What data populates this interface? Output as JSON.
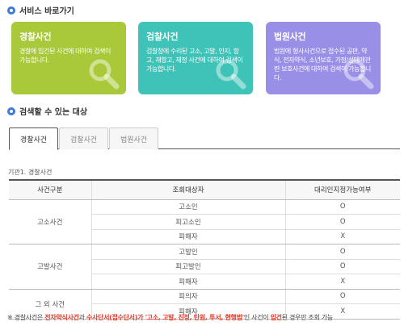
{
  "sections": {
    "shortcuts_title": "서비스 바로가기",
    "searchable_title": "검색할 수 있는 대상"
  },
  "cards": [
    {
      "title": "경찰사건",
      "desc": "경찰에 입건된 사건에 대하여 검색이 가능합니다.",
      "color": "#a9c93a"
    },
    {
      "title": "검찰사건",
      "desc": "검찰청에 수리된 고소, 고발, 인지, 항고, 재항고, 재정 사건에 대하여 검색이 가능합니다.",
      "color": "#3fc2b7"
    },
    {
      "title": "법원사건",
      "desc": "법원에 형사사건으로 접수된 공판, 약식, 전자약식, 소년보호, 가정/성매매관련 보호사건에 대하여 검색이 가능합니다.",
      "color": "#9a8fe6"
    }
  ],
  "tabs": [
    "경찰사건",
    "검찰사건",
    "법원사건"
  ],
  "active_tab": "경찰사건",
  "table": {
    "caption": "기관1. 경찰사건",
    "headers": [
      "사건구분",
      "조회대상자",
      "대리인지정가능여부"
    ],
    "groups": [
      {
        "name": "고소사건",
        "rows": [
          [
            "고소인",
            "O"
          ],
          [
            "피고소인",
            "O"
          ],
          [
            "피해자",
            "X"
          ]
        ]
      },
      {
        "name": "고발사건",
        "rows": [
          [
            "고발인",
            "O"
          ],
          [
            "피고발인",
            "O"
          ],
          [
            "피해자",
            "X"
          ]
        ]
      },
      {
        "name": "그 외 사건",
        "rows": [
          [
            "피의자",
            "O"
          ],
          [
            "피해자",
            "X"
          ]
        ]
      }
    ]
  },
  "note": {
    "mark": "※",
    "t1": "경찰사건은 ",
    "r1": "전자약식사건",
    "t2": "과 ",
    "r2": "수사단서(접수단서)가 '고소, 고발, 진정, 탄원, 투서, 현행범'",
    "t3": "인 사건이 ",
    "r3": "입건",
    "t4": "된 경우만 조회 가능"
  },
  "colors": {
    "accent": "#3d7bd9",
    "note_red": "#e23c2b"
  }
}
